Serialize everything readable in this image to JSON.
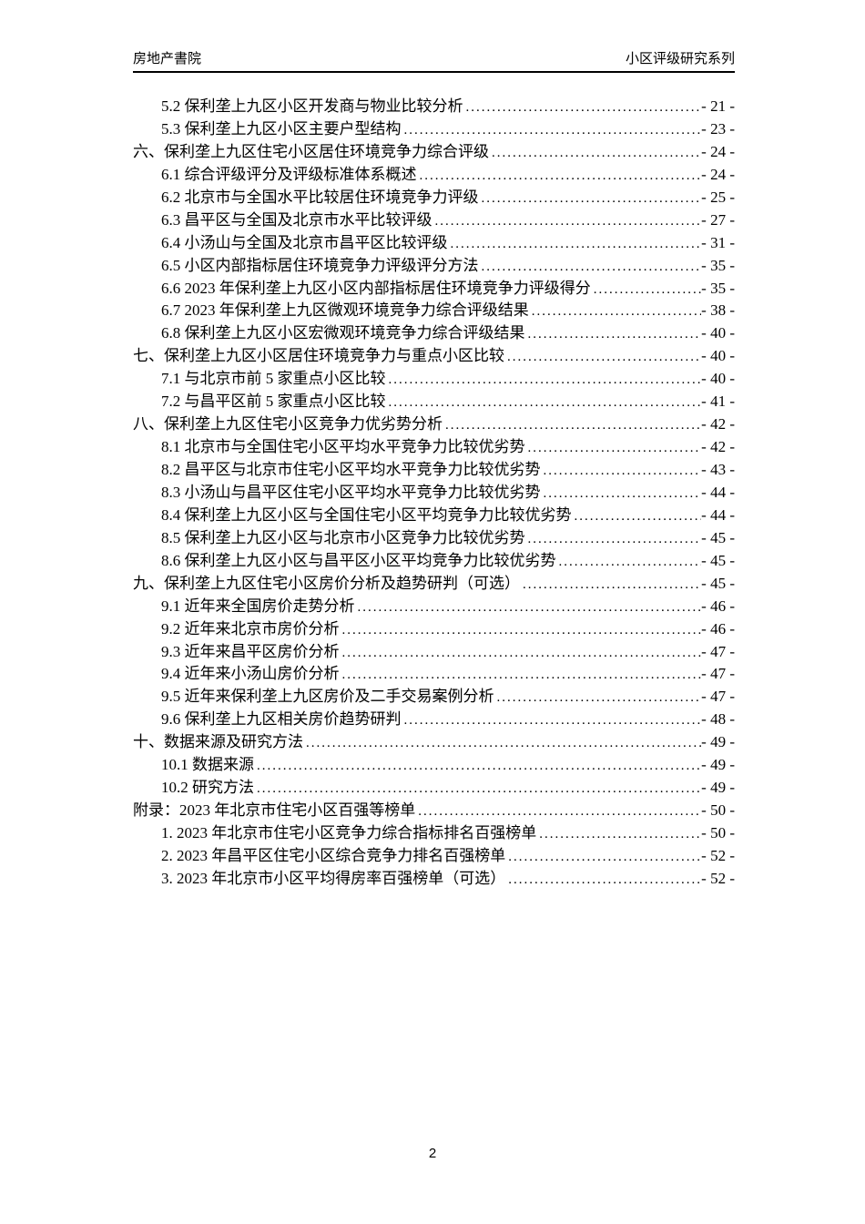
{
  "header": {
    "left": "房地产書院",
    "right": "小区评级研究系列"
  },
  "toc": {
    "entries": [
      {
        "level": 2,
        "label": "5.2 保利垄上九区小区开发商与物业比较分析",
        "page": "- 21 -"
      },
      {
        "level": 2,
        "label": "5.3 保利垄上九区小区主要户型结构",
        "page": "- 23 -"
      },
      {
        "level": 1,
        "label": "六、保利垄上九区住宅小区居住环境竞争力综合评级",
        "page": "- 24 -"
      },
      {
        "level": 2,
        "label": "6.1 综合评级评分及评级标准体系概述",
        "page": "- 24 -"
      },
      {
        "level": 2,
        "label": "6.2 北京市与全国水平比较居住环境竞争力评级",
        "page": "- 25 -"
      },
      {
        "level": 2,
        "label": "6.3 昌平区与全国及北京市水平比较评级",
        "page": "- 27 -"
      },
      {
        "level": 2,
        "label": "6.4 小汤山与全国及北京市昌平区比较评级",
        "page": "- 31 -"
      },
      {
        "level": 2,
        "label": "6.5 小区内部指标居住环境竞争力评级评分方法",
        "page": "- 35 -"
      },
      {
        "level": 2,
        "label": "6.6 2023 年保利垄上九区小区内部指标居住环境竞争力评级得分",
        "page": "- 35 -"
      },
      {
        "level": 2,
        "label": "6.7 2023 年保利垄上九区微观环境竞争力综合评级结果",
        "page": "- 38 -"
      },
      {
        "level": 2,
        "label": "6.8 保利垄上九区小区宏微观环境竞争力综合评级结果",
        "page": "- 40 -"
      },
      {
        "level": 1,
        "label": "七、保利垄上九区小区居住环境竞争力与重点小区比较",
        "page": "- 40 -"
      },
      {
        "level": 2,
        "label": "7.1 与北京市前 5 家重点小区比较",
        "page": "- 40 -"
      },
      {
        "level": 2,
        "label": "7.2 与昌平区前 5 家重点小区比较",
        "page": "- 41 -"
      },
      {
        "level": 1,
        "label": "八、保利垄上九区住宅小区竞争力优劣势分析",
        "page": "- 42 -"
      },
      {
        "level": 2,
        "label": "8.1 北京市与全国住宅小区平均水平竞争力比较优劣势",
        "page": "- 42 -"
      },
      {
        "level": 2,
        "label": "8.2 昌平区与北京市住宅小区平均水平竞争力比较优劣势",
        "page": "- 43 -"
      },
      {
        "level": 2,
        "label": "8.3 小汤山与昌平区住宅小区平均水平竞争力比较优劣势",
        "page": "- 44 -"
      },
      {
        "level": 2,
        "label": "8.4 保利垄上九区小区与全国住宅小区平均竞争力比较优劣势",
        "page": "- 44 -"
      },
      {
        "level": 2,
        "label": "8.5 保利垄上九区小区与北京市小区竞争力比较优劣势",
        "page": "- 45 -"
      },
      {
        "level": 2,
        "label": "8.6 保利垄上九区小区与昌平区小区平均竞争力比较优劣势",
        "page": "- 45 -"
      },
      {
        "level": 1,
        "label": "九、保利垄上九区住宅小区房价分析及趋势研判（可选）",
        "page": "- 45 -"
      },
      {
        "level": 2,
        "label": "9.1 近年来全国房价走势分析",
        "page": "- 46 -"
      },
      {
        "level": 2,
        "label": "9.2 近年来北京市房价分析",
        "page": "- 46 -"
      },
      {
        "level": 2,
        "label": "9.3 近年来昌平区房价分析",
        "page": "- 47 -"
      },
      {
        "level": 2,
        "label": "9.4 近年来小汤山房价分析",
        "page": "- 47 -"
      },
      {
        "level": 2,
        "label": "9.5 近年来保利垄上九区房价及二手交易案例分析",
        "page": "- 47 -"
      },
      {
        "level": 2,
        "label": "9.6 保利垄上九区相关房价趋势研判",
        "page": "- 48 -"
      },
      {
        "level": 1,
        "label": "十、数据来源及研究方法",
        "page": "- 49 -"
      },
      {
        "level": 2,
        "label": "10.1 数据来源",
        "page": "- 49 -"
      },
      {
        "level": 2,
        "label": "10.2 研究方法",
        "page": "- 49 -"
      },
      {
        "level": 1,
        "label": "附录：2023 年北京市住宅小区百强等榜单",
        "page": "- 50 -"
      },
      {
        "level": 2,
        "label": "1. 2023 年北京市住宅小区竞争力综合指标排名百强榜单",
        "page": "- 50 -"
      },
      {
        "level": 2,
        "label": "2. 2023 年昌平区住宅小区综合竞争力排名百强榜单",
        "page": "- 52 -"
      },
      {
        "level": 2,
        "label": "3. 2023 年北京市小区平均得房率百强榜单（可选）",
        "page": "- 52 -"
      }
    ]
  },
  "footer": {
    "page_number": "2"
  }
}
